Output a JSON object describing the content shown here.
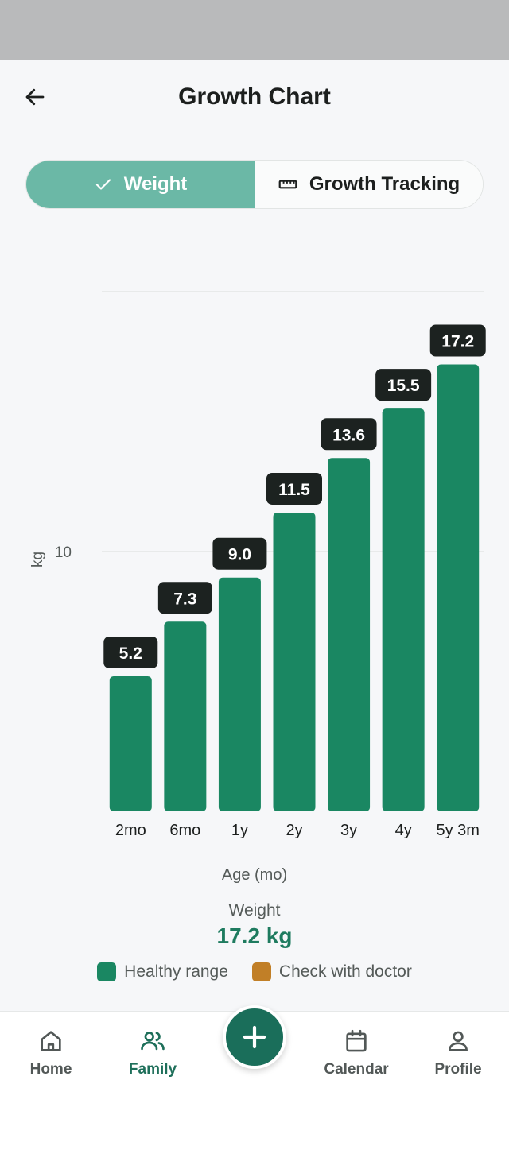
{
  "header": {
    "title": "Growth Chart"
  },
  "tabs": [
    {
      "label": "Weight",
      "active": true
    },
    {
      "label": "Growth Tracking",
      "active": false
    }
  ],
  "chart_data": {
    "type": "bar",
    "categories": [
      "2mo",
      "6mo",
      "1y",
      "2y",
      "3y",
      "4y",
      "5y 3m"
    ],
    "values": [
      5.2,
      7.3,
      9.0,
      11.5,
      13.6,
      15.5,
      17.2
    ],
    "value_labels": [
      "5.2",
      "7.3",
      "9.0",
      "11.5",
      "13.6",
      "15.5",
      "17.2"
    ],
    "xlabel": "Age (mo)",
    "ylabel": "kg",
    "y_ticks": [
      10
    ],
    "ylim": [
      0,
      20
    ],
    "grid": true,
    "bar_color": "#1a8762"
  },
  "summary": {
    "label": "Weight",
    "value": "17.2 kg"
  },
  "legend": [
    {
      "label": "Healthy range",
      "color": "#1a8762"
    },
    {
      "label": "Check with doctor",
      "color": "#c17f27"
    }
  ],
  "nav": {
    "items": [
      {
        "label": "Home",
        "icon": "home-icon",
        "active": false
      },
      {
        "label": "Family",
        "icon": "family-icon",
        "active": true
      },
      {
        "label": "Calendar",
        "icon": "calendar-icon",
        "active": false
      },
      {
        "label": "Profile",
        "icon": "profile-icon",
        "active": false
      }
    ],
    "fab_icon": "plus-icon"
  }
}
